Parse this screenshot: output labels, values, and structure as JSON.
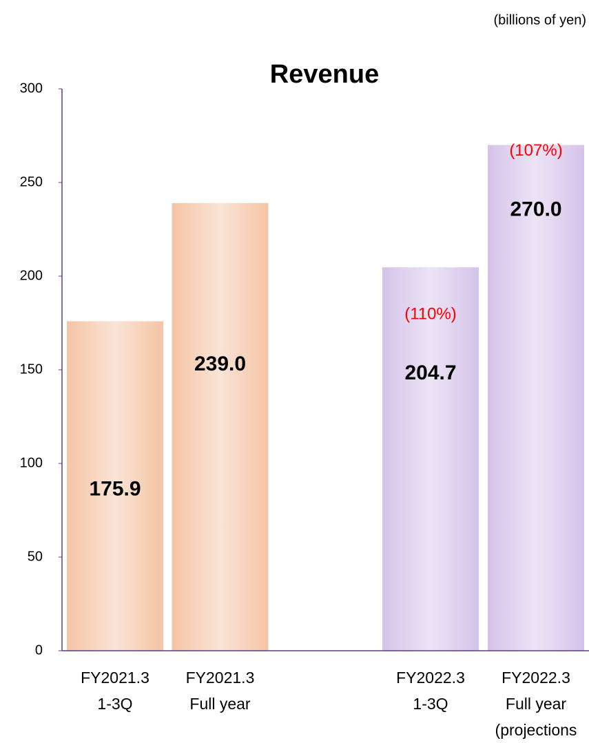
{
  "chart_data": {
    "type": "bar",
    "title": "Revenue",
    "unit_label": "(billions of yen)",
    "categories": [
      [
        "FY2021.3",
        "1-3Q"
      ],
      [
        "FY2021.3",
        "Full year"
      ],
      null,
      [
        "FY2022.3",
        "1-3Q"
      ],
      [
        "FY2022.3",
        "Full year",
        "(projections"
      ]
    ],
    "values": [
      175.9,
      239.0,
      null,
      204.7,
      270.0
    ],
    "value_labels": [
      "175.9",
      "239.0",
      null,
      "204.7",
      "270.0"
    ],
    "annotations": [
      null,
      null,
      null,
      "(110%)",
      "(107%)"
    ],
    "annotation_color": "#ff0000",
    "colors": [
      "#f5c4a5",
      "#f5c4a5",
      null,
      "#d5c3ea",
      "#d5c3ea"
    ],
    "ylim": [
      0,
      300
    ],
    "yticks": [
      0,
      50,
      100,
      150,
      200,
      250,
      300
    ],
    "grid": false
  }
}
